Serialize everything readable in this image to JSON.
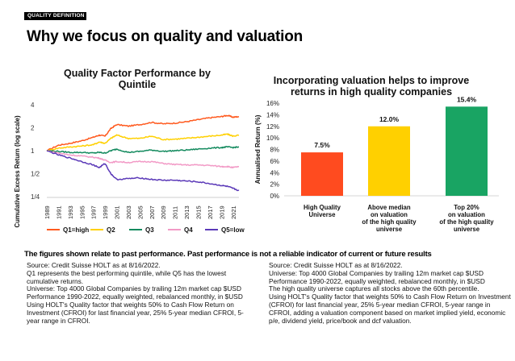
{
  "badge": "QUALITY DEFINITION",
  "title": "Why we focus on quality and valuation",
  "disclaimer": "The figures shown relate to past performance. Past performance is not a reliable indicator of current or future results",
  "colors": {
    "q1": "#ff5a1f",
    "q2": "#ffd000",
    "q3": "#138a5e",
    "q4": "#f29ac6",
    "q5": "#5b39b8",
    "bar1": "#ff4b1f",
    "bar2": "#ffd000",
    "bar3": "#19a463"
  },
  "notes_left": [
    "Source: Credit Suisse HOLT as at 8/16/2022.",
    " Q1 represents the best performing quintile, while Q5 has the lowest cumulative returns.",
    "Universe: Top 4000 Global Companies by trailing 12m market cap $USD",
    "Performance 1990-2022, equally weighted, rebalanced monthly, in $USD",
    "Using HOLT's Quality factor that weights 50% to Cash Flow Return on Investment (CFROI) for last financial year, 25% 5-year median CFROI, 5-year range in CFROI."
  ],
  "notes_right": [
    "Source: Credit Suisse HOLT as at 8/16/2022.",
    "Universe: Top 4000 Global Companies by trailing 12m market cap $USD",
    "Performance 1990-2022, equally weighted, rebalanced monthly, in $USD",
    "The high quality universe captures all stocks above the 60th percentile.",
    "Using HOLT's Quality factor that weights 50% to Cash Flow Return on Investment (CFROI) for last financial year, 25% 5-year median CFROI, 5-year range in CFROI, adding a valuation component based on market implied yield, economic p/e, dividend yield, price/book and dcf valuation."
  ],
  "chart_data": [
    {
      "type": "line",
      "title": "Quality Factor Performance by Quintile",
      "ylabel": "Cumulative Excess Return (log scale)",
      "y_scale": "log2",
      "ylim": [
        0.25,
        4
      ],
      "yticks": [
        4,
        2,
        1,
        0.5,
        0.25
      ],
      "ytick_labels": [
        "4",
        "2",
        "1",
        "1/2",
        "1/4"
      ],
      "xtick_labels": [
        "1989",
        "1991",
        "1993",
        "1995",
        "1997",
        "1999",
        "2001",
        "2003",
        "2005",
        "2007",
        "2009",
        "2011",
        "2013",
        "2015",
        "2017",
        "2019",
        "2021"
      ],
      "x": [
        1989,
        1991,
        1993,
        1995,
        1997,
        1998,
        1999,
        2000,
        2001,
        2003,
        2005,
        2007,
        2009,
        2011,
        2013,
        2015,
        2017,
        2019,
        2020,
        2021,
        2022
      ],
      "series": [
        {
          "name": "Q1=high",
          "values": [
            1.0,
            1.18,
            1.25,
            1.35,
            1.5,
            1.6,
            1.55,
            1.95,
            2.2,
            2.1,
            2.2,
            2.35,
            2.25,
            2.3,
            2.4,
            2.55,
            2.7,
            2.8,
            2.9,
            2.75,
            2.8
          ]
        },
        {
          "name": "Q2",
          "values": [
            1.0,
            1.08,
            1.12,
            1.15,
            1.2,
            1.3,
            1.25,
            1.45,
            1.6,
            1.45,
            1.45,
            1.55,
            1.4,
            1.42,
            1.45,
            1.5,
            1.55,
            1.6,
            1.65,
            1.55,
            1.6
          ]
        },
        {
          "name": "Q3",
          "values": [
            1.0,
            0.98,
            0.95,
            0.95,
            0.93,
            0.95,
            0.93,
            1.0,
            1.05,
            0.95,
            0.98,
            1.02,
            0.98,
            1.0,
            1.02,
            1.05,
            1.08,
            1.1,
            1.12,
            1.1,
            1.12
          ]
        },
        {
          "name": "Q4",
          "values": [
            1.0,
            0.93,
            0.88,
            0.85,
            0.82,
            0.8,
            0.75,
            0.7,
            0.72,
            0.7,
            0.72,
            0.72,
            0.68,
            0.66,
            0.65,
            0.65,
            0.64,
            0.62,
            0.62,
            0.6,
            0.62
          ]
        },
        {
          "name": "Q5=low",
          "values": [
            1.0,
            0.88,
            0.8,
            0.72,
            0.65,
            0.6,
            0.68,
            0.5,
            0.42,
            0.43,
            0.44,
            0.42,
            0.41,
            0.41,
            0.4,
            0.39,
            0.37,
            0.35,
            0.34,
            0.32,
            0.3
          ]
        }
      ]
    },
    {
      "type": "bar",
      "title": "Incorporating valuation helps to improve returns in high quality companies",
      "ylabel": "Annualised Return (%)",
      "ylim": [
        0,
        16
      ],
      "yticks": [
        "0%",
        "2%",
        "4%",
        "6%",
        "8%",
        "10%",
        "12%",
        "14%",
        "16%"
      ],
      "categories": [
        [
          "High Quality",
          "Universe"
        ],
        [
          "Above median",
          "on valuation",
          "of the high quality",
          "universe"
        ],
        [
          "Top 20%",
          "on valuation",
          "of the high quality",
          "universe"
        ]
      ],
      "values": [
        7.5,
        12.0,
        15.4
      ],
      "data_labels": [
        "7.5%",
        "12.0%",
        "15.4%"
      ]
    }
  ]
}
